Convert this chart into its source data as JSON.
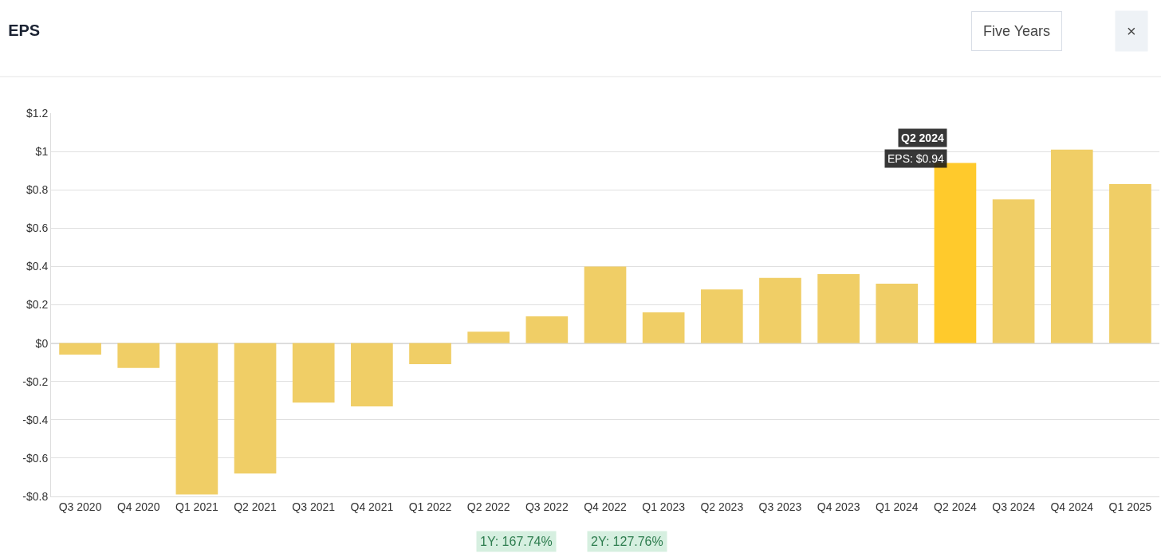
{
  "chart_data": {
    "type": "bar",
    "title": "EPS",
    "categories": [
      "Q3 2020",
      "Q4 2020",
      "Q1 2021",
      "Q2 2021",
      "Q3 2021",
      "Q4 2021",
      "Q1 2022",
      "Q2 2022",
      "Q3 2022",
      "Q4 2022",
      "Q1 2023",
      "Q2 2023",
      "Q3 2023",
      "Q4 2023",
      "Q1 2024",
      "Q2 2024",
      "Q3 2024",
      "Q4 2024",
      "Q1 2025"
    ],
    "values": [
      -0.06,
      -0.13,
      -0.79,
      -0.68,
      -0.31,
      -0.33,
      -0.11,
      0.06,
      0.14,
      0.4,
      0.16,
      0.28,
      0.34,
      0.36,
      0.31,
      0.94,
      0.75,
      1.01,
      0.83
    ],
    "colors": [
      "#f0ce66",
      "#f0ce66",
      "#f0ce66",
      "#f0ce66",
      "#f0ce66",
      "#f0ce66",
      "#f0ce66",
      "#f0ce66",
      "#f0ce66",
      "#f0ce66",
      "#f0ce66",
      "#f0ce66",
      "#f0ce66",
      "#f0ce66",
      "#f0ce66",
      "#ffca2c",
      "#f0ce66",
      "#f0ce66",
      "#f0ce66"
    ],
    "ylim": [
      -0.8,
      1.2
    ],
    "yticks": [
      {
        "value": -0.8,
        "label": "-$0.8"
      },
      {
        "value": -0.6,
        "label": "-$0.6"
      },
      {
        "value": -0.4,
        "label": "-$0.4"
      },
      {
        "value": -0.2,
        "label": "-$0.2"
      },
      {
        "value": 0,
        "label": "$0"
      },
      {
        "value": 0.2,
        "label": "$0.2"
      },
      {
        "value": 0.4,
        "label": "$0.4"
      },
      {
        "value": 0.6,
        "label": "$0.6"
      },
      {
        "value": 0.8,
        "label": "$0.8"
      },
      {
        "value": 1,
        "label": "$1"
      },
      {
        "value": 1.2,
        "label": "$1.2"
      }
    ],
    "grid": true,
    "annotations": [
      "Five Years",
      "×",
      "1Y: 167.74%",
      "2Y: 127.76%",
      {
        "text": "Q2 2024",
        "x": "Q2 2024",
        "y": 0.94
      },
      {
        "text": "EPS: $0.94",
        "x": "Q2 2024",
        "y": 0.94
      }
    ]
  }
}
